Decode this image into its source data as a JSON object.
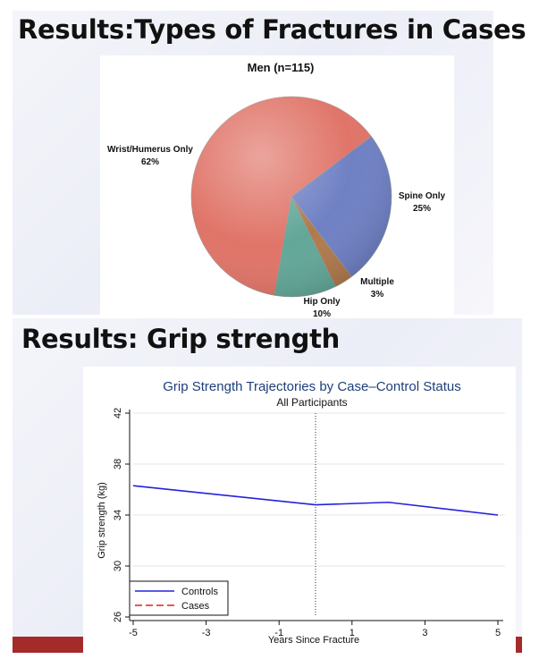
{
  "slides": [
    {
      "title": "Results:Types of Fractures in Cases"
    },
    {
      "title": "Results:  Grip strength"
    }
  ],
  "colors": {
    "wrist": "#e07468",
    "spine": "#6f80c4",
    "hip": "#62a798",
    "multiple": "#b07a4c",
    "controls": "#2222dd",
    "cases": "#dd2222",
    "accent_stripe": "#a52a2a"
  },
  "chart_data": [
    {
      "type": "pie",
      "title": "Men (n=115)",
      "slices": [
        {
          "name": "Wrist/Humerus Only",
          "value": 62,
          "label": "62%"
        },
        {
          "name": "Spine Only",
          "value": 25,
          "label": "25%"
        },
        {
          "name": "Multiple",
          "value": 3,
          "label": "3%"
        },
        {
          "name": "Hip Only",
          "value": 10,
          "label": "10%"
        }
      ]
    },
    {
      "type": "line",
      "title": "Grip Strength Trajectories by Case–Control Status",
      "subtitle": "All Participants",
      "xlabel": "Years Since Fracture",
      "ylabel": "Grip strength (kg)",
      "xlim": [
        -5,
        5
      ],
      "ylim": [
        26,
        42
      ],
      "xticks": [
        -5,
        -3,
        -1,
        1,
        3,
        5
      ],
      "yticks": [
        26,
        30,
        34,
        38,
        42
      ],
      "grid": true,
      "reference_line_x": 0,
      "legend": "bottom-left",
      "series": [
        {
          "name": "Controls",
          "x": [
            -5,
            0,
            2,
            5
          ],
          "y": [
            36.3,
            34.8,
            35.0,
            34.0
          ]
        },
        {
          "name": "Cases",
          "x": [],
          "y": []
        }
      ]
    }
  ]
}
